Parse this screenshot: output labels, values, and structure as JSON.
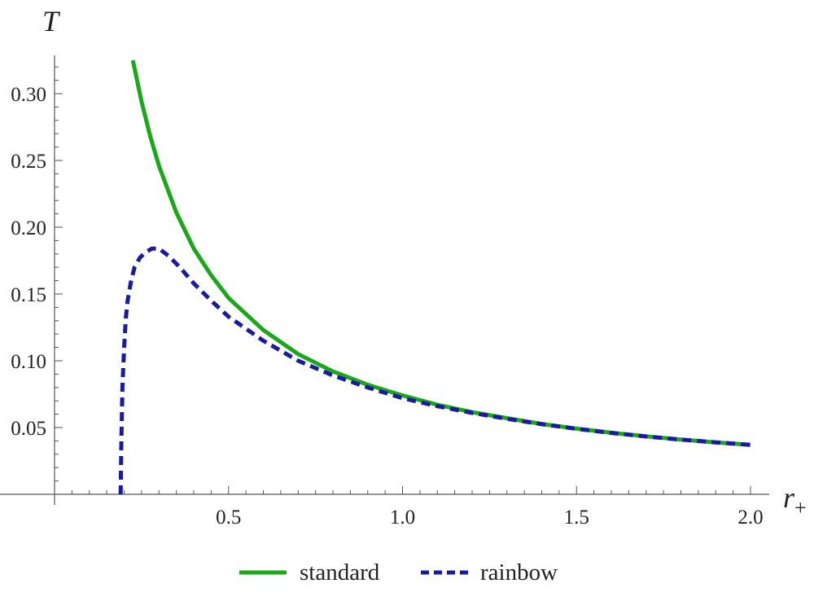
{
  "chart_data": {
    "type": "line",
    "xlabel": "r",
    "xlabel_subscript": "+",
    "ylabel": "T",
    "xlim": [
      0,
      2.0
    ],
    "ylim": [
      0,
      0.33
    ],
    "xticks": [
      {
        "value": 0.5,
        "label": "0.5"
      },
      {
        "value": 1.0,
        "label": "1.0"
      },
      {
        "value": 1.5,
        "label": "1.5"
      },
      {
        "value": 2.0,
        "label": "2.0"
      }
    ],
    "yticks": [
      {
        "value": 0.05,
        "label": "0.05"
      },
      {
        "value": 0.1,
        "label": "0.10"
      },
      {
        "value": 0.15,
        "label": "0.15"
      },
      {
        "value": 0.2,
        "label": "0.20"
      },
      {
        "value": 0.25,
        "label": "0.25"
      },
      {
        "value": 0.3,
        "label": "0.30"
      }
    ],
    "grid": false,
    "legend_position": "bottom-center",
    "series": [
      {
        "name": "standard",
        "color": "#1aa81a",
        "style": "solid",
        "x": [
          0.225,
          0.25,
          0.275,
          0.3,
          0.35,
          0.4,
          0.45,
          0.5,
          0.6,
          0.7,
          0.8,
          0.9,
          1.0,
          1.1,
          1.2,
          1.3,
          1.4,
          1.5,
          1.6,
          1.7,
          1.8,
          1.9,
          2.0
        ],
        "values": [
          0.325,
          0.294,
          0.268,
          0.246,
          0.211,
          0.184,
          0.164,
          0.147,
          0.123,
          0.105,
          0.092,
          0.082,
          0.074,
          0.067,
          0.0615,
          0.057,
          0.0527,
          0.0492,
          0.0461,
          0.0434,
          0.041,
          0.0389,
          0.037
        ]
      },
      {
        "name": "rainbow",
        "color": "#1a1aa0",
        "style": "dashed",
        "x": [
          0.19,
          0.192,
          0.195,
          0.2,
          0.205,
          0.21,
          0.22,
          0.23,
          0.245,
          0.26,
          0.28,
          0.3,
          0.33,
          0.36,
          0.4,
          0.45,
          0.5,
          0.6,
          0.7,
          0.8,
          0.9,
          1.0,
          1.1,
          1.2,
          1.3,
          1.4,
          1.5,
          1.6,
          1.7,
          1.8,
          1.9,
          2.0
        ],
        "values": [
          0.0,
          0.04,
          0.08,
          0.11,
          0.132,
          0.145,
          0.16,
          0.17,
          0.177,
          0.181,
          0.184,
          0.184,
          0.178,
          0.17,
          0.158,
          0.145,
          0.133,
          0.115,
          0.1,
          0.089,
          0.08,
          0.072,
          0.066,
          0.061,
          0.0565,
          0.0525,
          0.049,
          0.046,
          0.0433,
          0.041,
          0.0389,
          0.037
        ]
      }
    ]
  }
}
